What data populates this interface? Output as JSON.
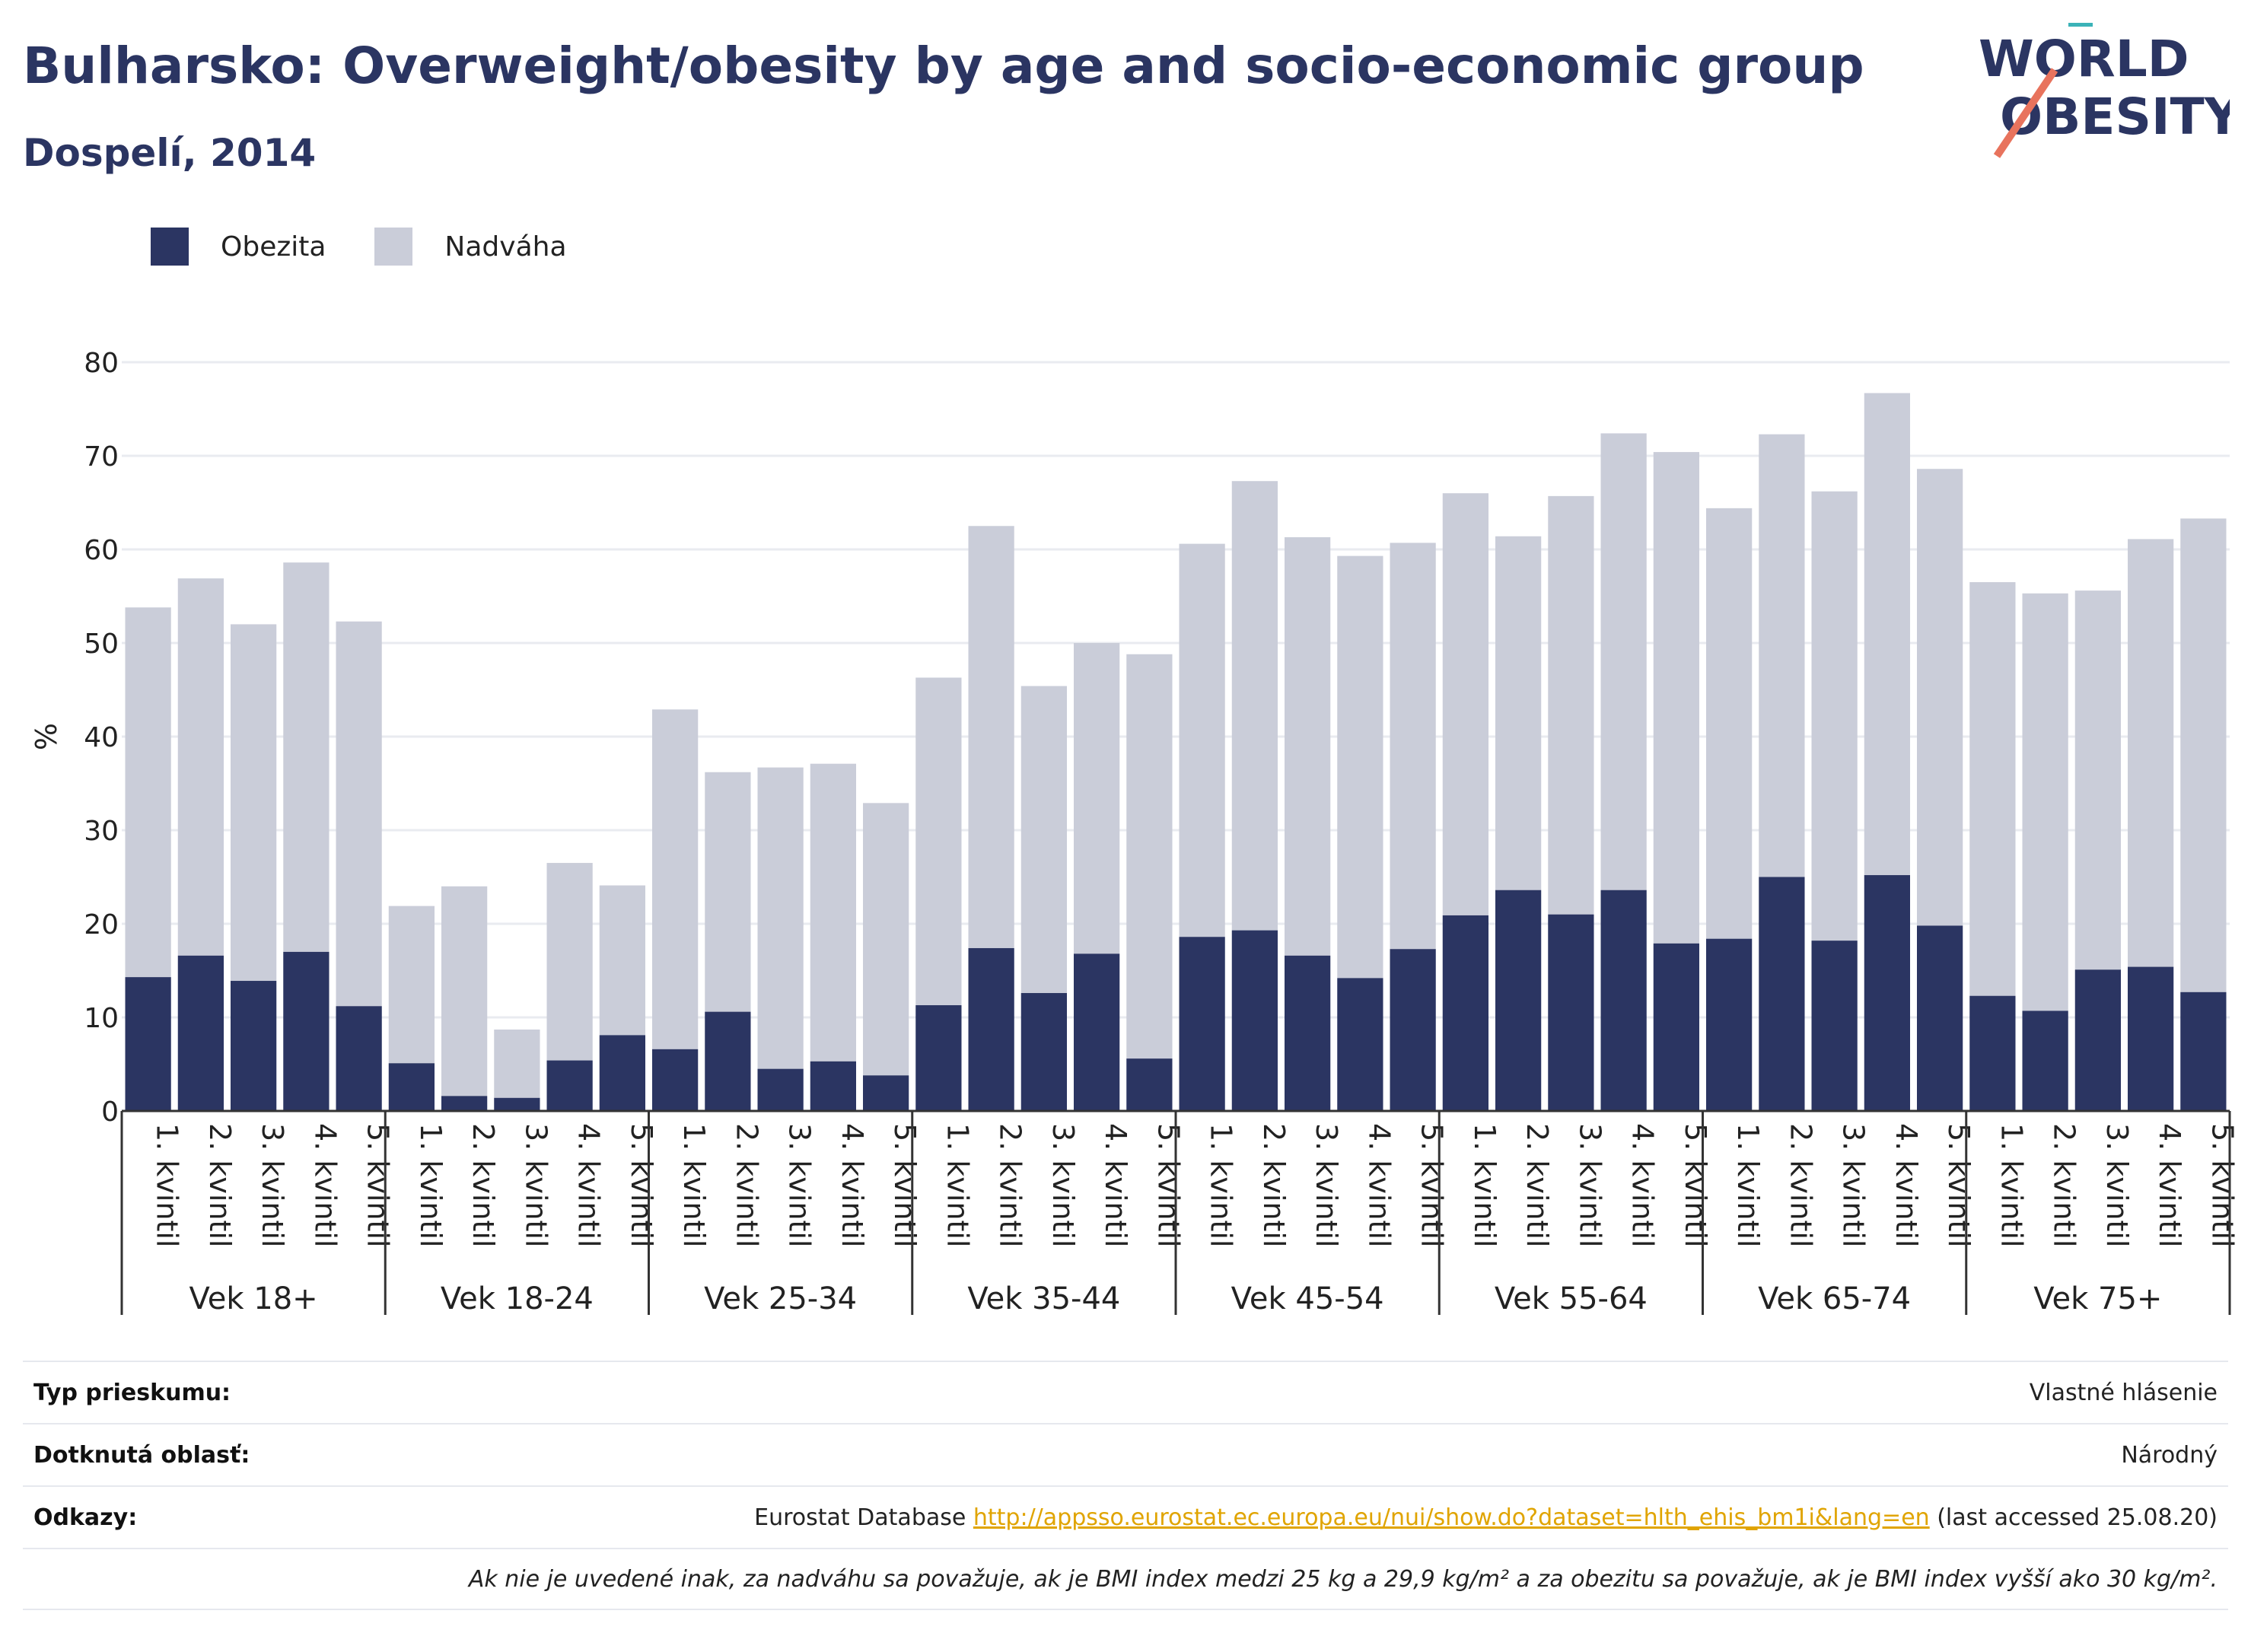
{
  "header": {
    "title": "Bulharsko: Overweight/obesity by age and socio-economic group",
    "subtitle": "Dospelí, 2014"
  },
  "logo": {
    "line1": "WORLD",
    "line2": "OBESITY"
  },
  "colors": {
    "obesity": "#2b3562",
    "overweight": "#cacdd9",
    "accent_teal": "#3bb3b8",
    "accent_coral": "#e8735d",
    "link": "#e0a400"
  },
  "chart_data": {
    "type": "bar",
    "stacked": true,
    "ylabel": "%",
    "ylim": [
      0,
      80
    ],
    "yticks": [
      0,
      10,
      20,
      30,
      40,
      50,
      60,
      70,
      80
    ],
    "grid": true,
    "legend_position": "top-left",
    "groups": [
      "Vek 18+",
      "Vek 18-24",
      "Vek 25-34",
      "Vek 35-44",
      "Vek 45-54",
      "Vek 55-64",
      "Vek 65-74",
      "Vek 75+"
    ],
    "categories": [
      "1. kvintil",
      "2. kvintil",
      "3. kvintil",
      "4. kvintil",
      "5. kvintil"
    ],
    "series": [
      {
        "name": "Obezita",
        "values": [
          [
            14.3,
            16.6,
            13.9,
            17.0,
            11.2
          ],
          [
            5.1,
            1.6,
            1.4,
            5.4,
            8.1
          ],
          [
            6.6,
            10.6,
            4.5,
            5.3,
            3.8
          ],
          [
            11.3,
            17.4,
            12.6,
            16.8,
            5.6
          ],
          [
            18.6,
            19.3,
            16.6,
            14.2,
            17.3
          ],
          [
            20.9,
            23.6,
            21.0,
            23.6,
            17.9
          ],
          [
            18.4,
            25.0,
            18.2,
            25.2,
            19.8
          ],
          [
            12.3,
            10.7,
            15.1,
            15.4,
            12.7
          ]
        ]
      },
      {
        "name": "Nadváha",
        "values": [
          [
            39.5,
            40.3,
            38.1,
            41.6,
            41.1
          ],
          [
            16.8,
            22.4,
            7.3,
            21.1,
            16.0
          ],
          [
            36.3,
            25.6,
            32.2,
            31.8,
            29.1
          ],
          [
            35.0,
            45.1,
            32.8,
            33.2,
            43.2
          ],
          [
            42.0,
            48.0,
            44.7,
            45.1,
            43.4
          ],
          [
            45.1,
            37.8,
            44.7,
            48.8,
            52.5
          ],
          [
            46.0,
            47.3,
            48.0,
            51.5,
            48.8
          ],
          [
            44.2,
            44.6,
            40.5,
            45.7,
            50.6
          ]
        ]
      }
    ]
  },
  "info": {
    "survey_type_label": "Typ prieskumu:",
    "survey_type_value": "Vlastné hlásenie",
    "area_label": "Dotknutá oblasť:",
    "area_value": "Národný",
    "refs_label": "Odkazy:",
    "refs_prefix": "Eurostat Database",
    "refs_link": "http://appsso.eurostat.ec.europa.eu/nui/show.do?dataset=hlth_ehis_bm1i&lang=en",
    "refs_suffix": "(last accessed 25.08.20)",
    "note": "Ak nie je uvedené inak, za nadváhu sa považuje, ak je BMI index medzi 25 kg a 29,9 kg/m² a za obezitu sa považuje, ak je BMI index vyšší ako 30 kg/m²."
  }
}
